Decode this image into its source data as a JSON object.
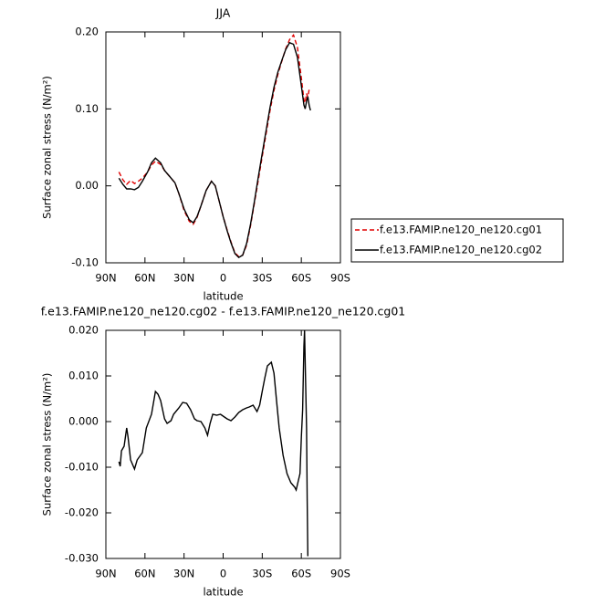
{
  "chart_data": [
    {
      "type": "line",
      "title": "JJA",
      "x_label": "latitude",
      "y_label": "Surface zonal stress (N/m²)",
      "x": [
        80,
        77,
        74,
        71,
        68,
        65,
        62,
        58,
        55,
        52,
        48,
        45,
        41,
        37,
        34,
        30,
        26,
        23,
        20,
        17,
        13,
        9,
        6,
        3,
        0,
        -3,
        -6,
        -9,
        -12,
        -15,
        -18,
        -21,
        -24,
        -27,
        -30,
        -33,
        -36,
        -39,
        -42,
        -45,
        -48,
        -51,
        -54,
        -57,
        -60,
        -62,
        -63,
        -64,
        -65,
        -66,
        -67
      ],
      "series": [
        {
          "name": "f.e13.FAMIP.ne120_ne120.cg01",
          "color": "#e00000",
          "style": "dashed",
          "values": [
            0.018,
            0.008,
            0.002,
            0.007,
            0.003,
            0.006,
            0.01,
            0.018,
            0.027,
            0.032,
            0.028,
            0.02,
            0.012,
            0.004,
            -0.01,
            -0.032,
            -0.046,
            -0.05,
            -0.041,
            -0.026,
            -0.006,
            0.006,
            0.0,
            -0.02,
            -0.04,
            -0.057,
            -0.073,
            -0.087,
            -0.092,
            -0.09,
            -0.077,
            -0.052,
            -0.022,
            0.008,
            0.038,
            0.068,
            0.098,
            0.124,
            0.145,
            0.162,
            0.178,
            0.19,
            0.196,
            0.18,
            0.14,
            0.112,
            0.108,
            0.12,
            0.115,
            0.125,
            0.127
          ]
        },
        {
          "name": "f.e13.FAMIP.ne120_ne120.cg02",
          "color": "#000000",
          "style": "solid",
          "values": [
            0.01,
            0.002,
            -0.004,
            -0.004,
            -0.005,
            -0.002,
            0.006,
            0.018,
            0.03,
            0.036,
            0.03,
            0.02,
            0.012,
            0.004,
            -0.01,
            -0.03,
            -0.044,
            -0.048,
            -0.04,
            -0.026,
            -0.006,
            0.006,
            0.0,
            -0.02,
            -0.04,
            -0.058,
            -0.074,
            -0.088,
            -0.093,
            -0.09,
            -0.075,
            -0.05,
            -0.02,
            0.012,
            0.042,
            0.072,
            0.102,
            0.128,
            0.148,
            0.163,
            0.177,
            0.186,
            0.184,
            0.167,
            0.13,
            0.105,
            0.1,
            0.11,
            0.116,
            0.105,
            0.098
          ]
        }
      ],
      "xlim": [
        90,
        -90
      ],
      "xticks": [
        {
          "value": 90,
          "label": "90N"
        },
        {
          "value": 60,
          "label": "60N"
        },
        {
          "value": 30,
          "label": "30N"
        },
        0,
        {
          "value": -30,
          "label": "30S"
        },
        {
          "value": -60,
          "label": "60S"
        },
        {
          "value": -90,
          "label": "90S"
        }
      ],
      "ylim": [
        -0.1,
        0.2
      ],
      "yticks": [
        {
          "value": -0.1,
          "label": "-0.10"
        },
        {
          "value": 0,
          "label": "0.00"
        },
        {
          "value": 0.1,
          "label": "0.10"
        },
        {
          "value": 0.2,
          "label": "0.20"
        }
      ],
      "legend": "right"
    },
    {
      "type": "line",
      "title": "f.e13.FAMIP.ne120_ne120.cg02 - f.e13.FAMIP.ne120_ne120.cg01",
      "x_label": "latitude",
      "y_label": "Surface zonal stress (N/m²)",
      "x": [
        80,
        79,
        78,
        76,
        74,
        73,
        71,
        68,
        66,
        62,
        59,
        55,
        52,
        50,
        48,
        45,
        43,
        40,
        38,
        34,
        31,
        28,
        25,
        22,
        20,
        17,
        14,
        12,
        10,
        8,
        5,
        2,
        -1,
        -3,
        -6,
        -9,
        -12,
        -15,
        -18,
        -20,
        -23,
        -26,
        -28,
        -30,
        -32,
        -34,
        -37,
        -39,
        -41,
        -43,
        -46,
        -49,
        -52,
        -55,
        -56,
        -57,
        -59,
        -60,
        -61,
        -62,
        -62.5,
        -64,
        -64.5,
        -65
      ],
      "values": [
        -0.0088,
        -0.0098,
        -0.0064,
        -0.0054,
        -0.0014,
        -0.0034,
        -0.0084,
        -0.0104,
        -0.0084,
        -0.0068,
        -0.0014,
        0.0016,
        0.0066,
        0.006,
        0.0046,
        0.0006,
        -0.0004,
        0.0002,
        0.0016,
        0.003,
        0.0042,
        0.004,
        0.0026,
        0.0006,
        0.0002,
        0,
        -0.0014,
        -0.003,
        -0.0004,
        0.0016,
        0.0014,
        0.0016,
        0.001,
        0.0006,
        0.0002,
        0.001,
        0.002,
        0.0026,
        0.003,
        0.0032,
        0.0036,
        0.0022,
        0.0036,
        0.0066,
        0.0096,
        0.0122,
        0.013,
        0.0106,
        0.0046,
        -0.0014,
        -0.0074,
        -0.0114,
        -0.0134,
        -0.0144,
        -0.015,
        -0.0138,
        -0.0114,
        -0.0034,
        0.0026,
        0.0165,
        0.02,
        -0.0014,
        -0.0174,
        -0.0295
      ],
      "color": "#000000",
      "style": "solid",
      "xlim": [
        90,
        -90
      ],
      "xticks": [
        {
          "value": 90,
          "label": "90N"
        },
        {
          "value": 60,
          "label": "60N"
        },
        {
          "value": 30,
          "label": "30N"
        },
        0,
        {
          "value": -30,
          "label": "30S"
        },
        {
          "value": -60,
          "label": "60S"
        },
        {
          "value": -90,
          "label": "90S"
        }
      ],
      "ylim": [
        -0.03,
        0.02
      ],
      "yticks": [
        {
          "value": -0.03,
          "label": "-0.030"
        },
        {
          "value": -0.02,
          "label": "-0.020"
        },
        {
          "value": -0.01,
          "label": "-0.010"
        },
        {
          "value": 0,
          "label": "0.000"
        },
        {
          "value": 0.01,
          "label": "0.010"
        },
        {
          "value": 0.02,
          "label": "0.020"
        }
      ]
    }
  ]
}
